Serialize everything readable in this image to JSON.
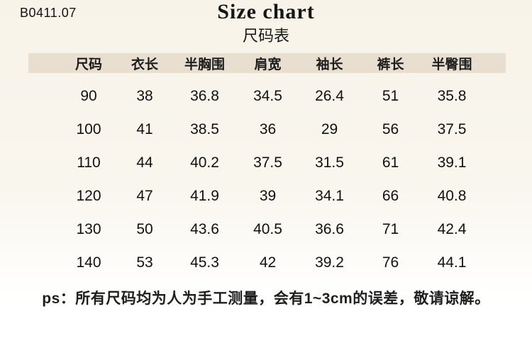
{
  "header": {
    "product_code": "B0411.07",
    "title": "Size chart",
    "subtitle": "尺码表"
  },
  "table": {
    "columns": [
      "尺码",
      "衣长",
      "半胸围",
      "肩宽",
      "袖长",
      "裤长",
      "半臀围"
    ],
    "rows": [
      [
        "90",
        "38",
        "36.8",
        "34.5",
        "26.4",
        "51",
        "35.8"
      ],
      [
        "100",
        "41",
        "38.5",
        "36",
        "29",
        "56",
        "37.5"
      ],
      [
        "110",
        "44",
        "40.2",
        "37.5",
        "31.5",
        "61",
        "39.1"
      ],
      [
        "120",
        "47",
        "41.9",
        "39",
        "34.1",
        "66",
        "40.8"
      ],
      [
        "130",
        "50",
        "43.6",
        "40.5",
        "36.6",
        "71",
        "42.4"
      ],
      [
        "140",
        "53",
        "45.3",
        "42",
        "39.2",
        "76",
        "44.1"
      ]
    ]
  },
  "note": "ps：所有尺码均为人为手工测量，会有1~3cm的误差，敬请谅解。",
  "colors": {
    "header_band_bg": "#e8dfd0",
    "page_top": "#f8f3e8",
    "page_bottom": "#ffffff",
    "text": "#141414"
  }
}
